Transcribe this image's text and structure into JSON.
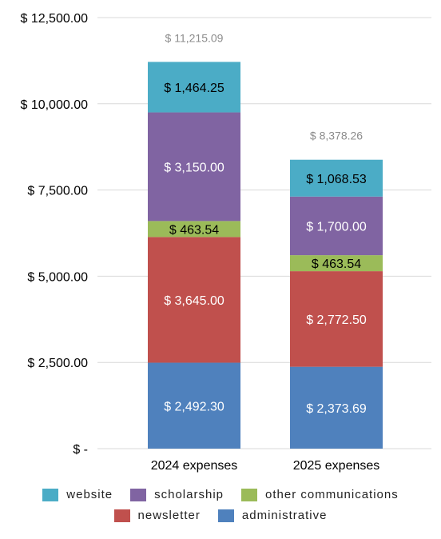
{
  "chart_data": {
    "type": "bar",
    "stacked": true,
    "categories": [
      "2024 expenses",
      "2025 expenses"
    ],
    "series": [
      {
        "name": "administrative",
        "color": "#4f81bd",
        "values": [
          2492.3,
          2373.69
        ],
        "labels": [
          "$ 2,492.30",
          "$ 2,373.69"
        ],
        "label_color": "#ffffff"
      },
      {
        "name": "newsletter",
        "color": "#c0504d",
        "values": [
          3645.0,
          2772.5
        ],
        "labels": [
          "$ 3,645.00",
          "$ 2,772.50"
        ],
        "label_color": "#ffffff"
      },
      {
        "name": "other communications",
        "color": "#9bbb59",
        "values": [
          463.54,
          463.54
        ],
        "labels": [
          "$ 463.54",
          "$ 463.54"
        ],
        "label_color": "#000000"
      },
      {
        "name": "scholarship",
        "color": "#8064a2",
        "values": [
          3150.0,
          1700.0
        ],
        "labels": [
          "$ 3,150.00",
          "$ 1,700.00"
        ],
        "label_color": "#ffffff"
      },
      {
        "name": "website",
        "color": "#4bacc6",
        "values": [
          1464.25,
          1068.53
        ],
        "labels": [
          "$ 1,464.25",
          "$ 1,068.53"
        ],
        "label_color": "#000000"
      }
    ],
    "totals": [
      "$ 11,215.09",
      "$ 8,378.26"
    ],
    "ylim": [
      0,
      12500
    ],
    "yticks": [
      0,
      2500,
      5000,
      7500,
      10000,
      12500
    ],
    "ytick_labels": [
      "$ -",
      "$ 2,500.00",
      "$ 5,000.00",
      "$ 7,500.00",
      "$ 10,000.00",
      "$ 12,500.00"
    ],
    "grid": true,
    "legend_position": "bottom"
  },
  "legend": {
    "row1": [
      {
        "label": "website",
        "color": "#4bacc6"
      },
      {
        "label": "scholarship",
        "color": "#8064a2"
      },
      {
        "label": "other communications",
        "color": "#9bbb59"
      }
    ],
    "row2": [
      {
        "label": "newsletter",
        "color": "#c0504d"
      },
      {
        "label": "administrative",
        "color": "#4f81bd"
      }
    ]
  }
}
